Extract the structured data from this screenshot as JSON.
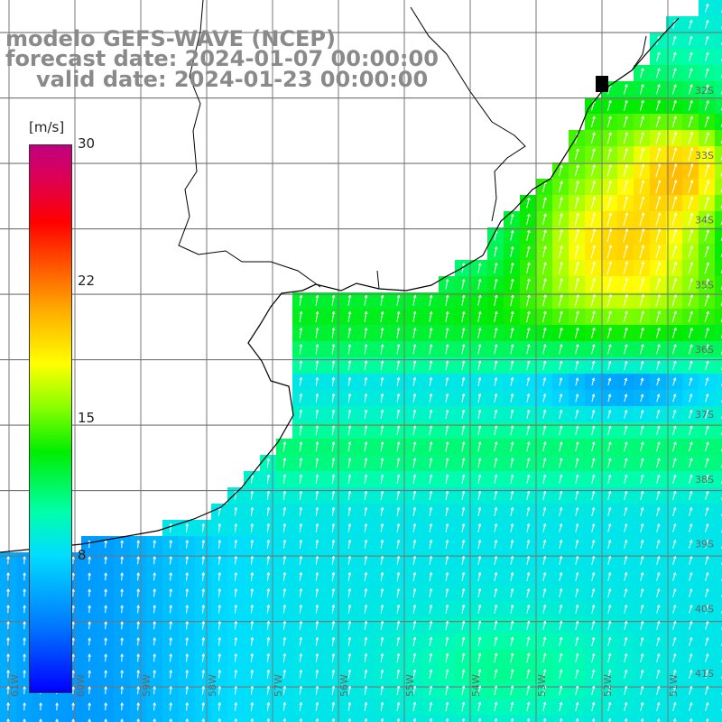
{
  "header": {
    "model": "modelo GEFS-WAVE (NCEP)",
    "forecast_date": "forecast date: 2024-01-07 00:00:00",
    "valid_date": "valid date: 2024-01-23 00:00:00"
  },
  "colorbar": {
    "units": "[m/s]",
    "ticks": [
      {
        "label": "30",
        "value": 30
      },
      {
        "label": "22",
        "value": 22
      },
      {
        "label": "15",
        "value": 15
      },
      {
        "label": "8",
        "value": 8
      }
    ],
    "colors": [
      "#0000ff",
      "#00ddff",
      "#00ee00",
      "#ffff00",
      "#ff0000",
      "#c0007f"
    ]
  },
  "map": {
    "lat_labels": [
      "32S",
      "33S",
      "34S",
      "35S",
      "36S",
      "37S",
      "38S",
      "39S",
      "40S",
      "41S"
    ],
    "lon_labels": [
      "61W",
      "60W",
      "59W",
      "58W",
      "57W",
      "56W",
      "55W",
      "54W",
      "53W",
      "52W",
      "51W"
    ],
    "field": "wind speed",
    "vector_direction": "north-northeast"
  }
}
